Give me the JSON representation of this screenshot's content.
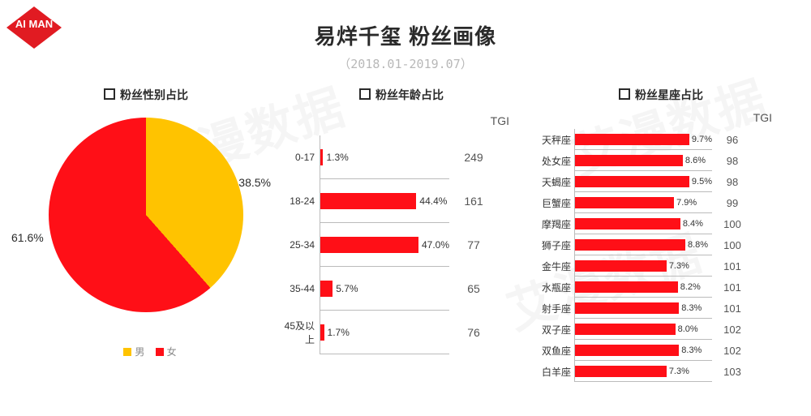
{
  "logo": {
    "text": "AI MAN",
    "bg": "#e11b22",
    "fg": "#ffffff"
  },
  "title": "易烊千玺 粉丝画像",
  "subtitle": "（2018.01-2019.07）",
  "watermark_text": "艾漫数据",
  "colors": {
    "red": "#ff0f17",
    "yellow": "#ffc300",
    "axis": "#bbbbbb",
    "text": "#2a2a2a"
  },
  "gender": {
    "title": "粉丝性别占比",
    "legend_male": "男",
    "legend_female": "女",
    "male": {
      "pct": 38.5,
      "label": "38.5%",
      "color": "#ffc300"
    },
    "female": {
      "pct": 61.6,
      "label": "61.6%",
      "color": "#ff0f17"
    }
  },
  "age": {
    "title": "粉丝年龄占比",
    "tgi_header": "TGI",
    "max": 60,
    "bar_color": "#ff0f17",
    "rows": [
      {
        "cat": "0-17",
        "pct": 1.3,
        "label": "1.3%",
        "tgi": "249"
      },
      {
        "cat": "18-24",
        "pct": 44.4,
        "label": "44.4%",
        "tgi": "161"
      },
      {
        "cat": "25-34",
        "pct": 47.0,
        "label": "47.0%",
        "tgi": "77"
      },
      {
        "cat": "35-44",
        "pct": 5.7,
        "label": "5.7%",
        "tgi": "65"
      },
      {
        "cat": "45及以上",
        "pct": 1.7,
        "label": "1.7%",
        "tgi": "76"
      }
    ]
  },
  "zodiac": {
    "title": "粉丝星座占比",
    "tgi_header": "TGI",
    "max": 11,
    "bar_color": "#ff0f17",
    "rows": [
      {
        "cat": "天秤座",
        "pct": 9.7,
        "label": "9.7%",
        "tgi": "96"
      },
      {
        "cat": "处女座",
        "pct": 8.6,
        "label": "8.6%",
        "tgi": "98"
      },
      {
        "cat": "天蝎座",
        "pct": 9.5,
        "label": "9.5%",
        "tgi": "98"
      },
      {
        "cat": "巨蟹座",
        "pct": 7.9,
        "label": "7.9%",
        "tgi": "99"
      },
      {
        "cat": "摩羯座",
        "pct": 8.4,
        "label": "8.4%",
        "tgi": "100"
      },
      {
        "cat": "狮子座",
        "pct": 8.8,
        "label": "8.8%",
        "tgi": "100"
      },
      {
        "cat": "金牛座",
        "pct": 7.3,
        "label": "7.3%",
        "tgi": "101"
      },
      {
        "cat": "水瓶座",
        "pct": 8.2,
        "label": "8.2%",
        "tgi": "101"
      },
      {
        "cat": "射手座",
        "pct": 8.3,
        "label": "8.3%",
        "tgi": "101"
      },
      {
        "cat": "双子座",
        "pct": 8.0,
        "label": "8.0%",
        "tgi": "102"
      },
      {
        "cat": "双鱼座",
        "pct": 8.3,
        "label": "8.3%",
        "tgi": "102"
      },
      {
        "cat": "白羊座",
        "pct": 7.3,
        "label": "7.3%",
        "tgi": "103"
      }
    ]
  }
}
